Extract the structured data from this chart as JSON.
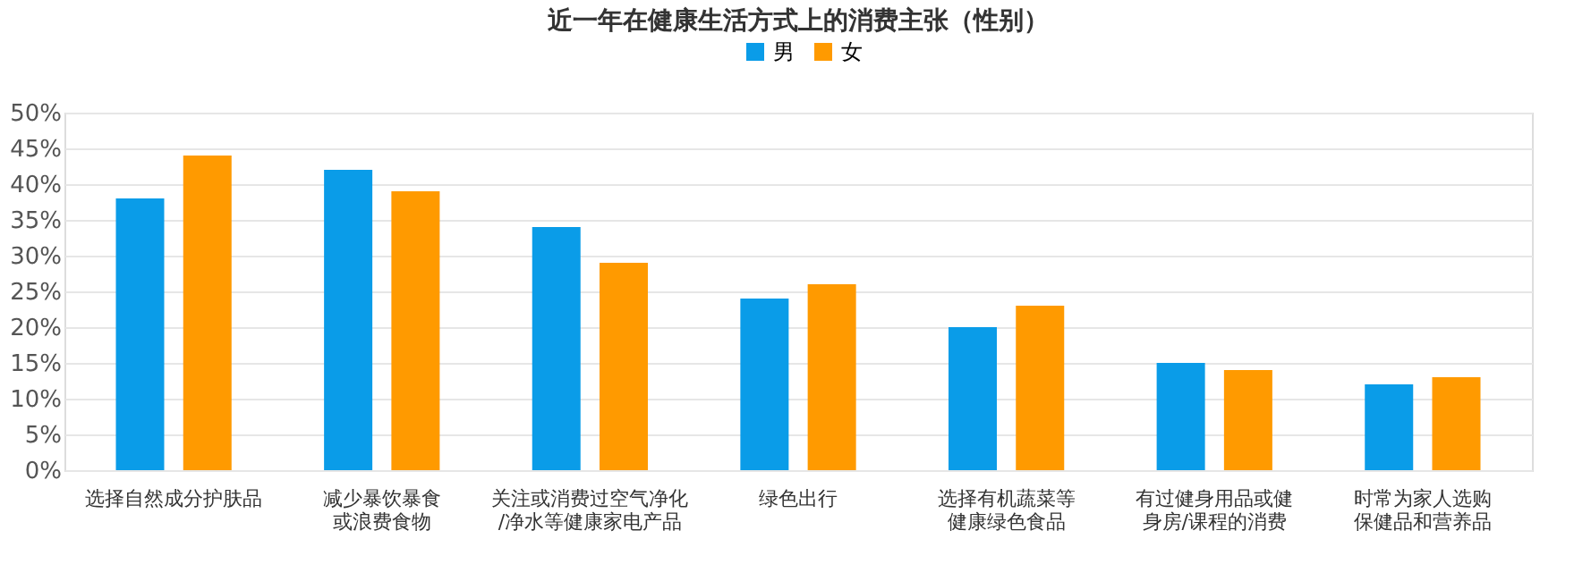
{
  "chart_data": {
    "type": "bar",
    "title": "近一年在健康生活方式上的消费主张（性别）",
    "categories": [
      "选择自然成分护肤品",
      "减少暴饮暴食或浪费食物",
      "关注或消费过空气净化/净水等健康家电产品",
      "绿色出行",
      "选择有机蔬菜等健康绿色食品",
      "有过健身用品或健身房/课程的消费",
      "时常为家人选购保健品和营养品"
    ],
    "series": [
      {
        "name": "男",
        "color": "#0a9ce8",
        "values": [
          38,
          42,
          34,
          24,
          20,
          15,
          12
        ]
      },
      {
        "name": "女",
        "color": "#ff9a00",
        "values": [
          44,
          39,
          29,
          26,
          23,
          14,
          13
        ]
      }
    ],
    "ylim": [
      0,
      50
    ],
    "yticks": [
      {
        "value": 0,
        "label": "0%"
      },
      {
        "value": 5,
        "label": "5%"
      },
      {
        "value": 10,
        "label": "10%"
      },
      {
        "value": 15,
        "label": "15%"
      },
      {
        "value": 20,
        "label": "20%"
      },
      {
        "value": 25,
        "label": "25%"
      },
      {
        "value": 30,
        "label": "30%"
      },
      {
        "value": 35,
        "label": "35%"
      },
      {
        "value": 40,
        "label": "40%"
      },
      {
        "value": 45,
        "label": "45%"
      },
      {
        "value": 50,
        "label": "50%"
      }
    ],
    "grid": "y",
    "legend": "top"
  }
}
